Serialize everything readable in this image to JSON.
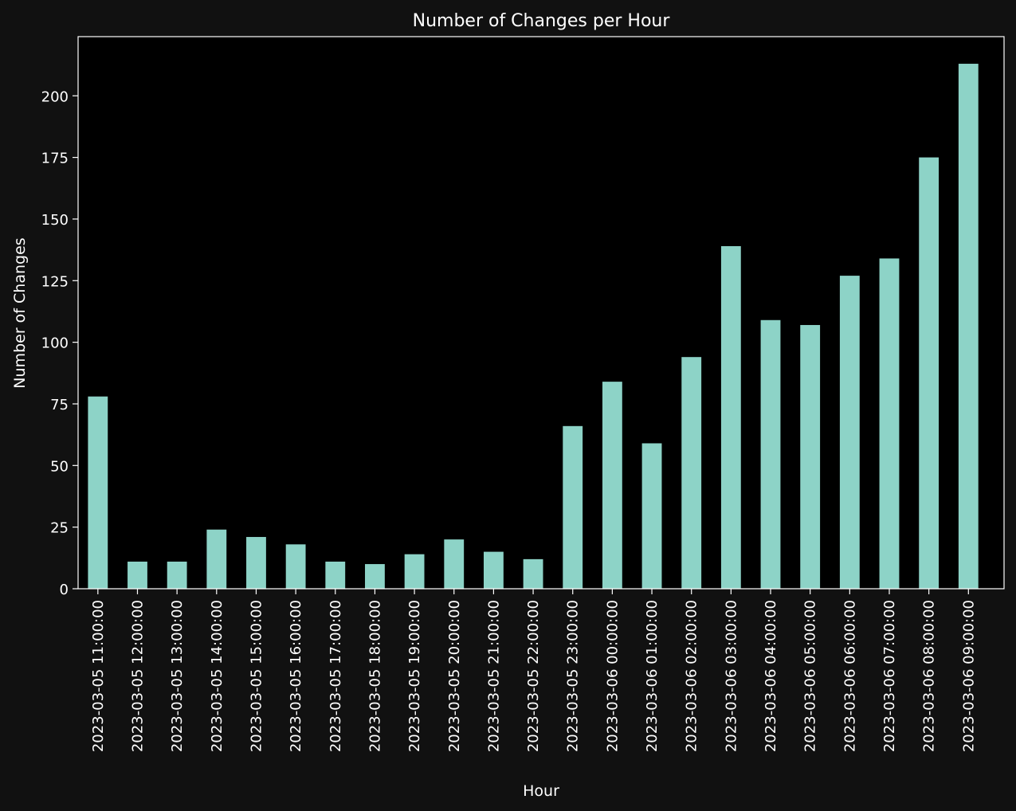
{
  "chart_data": {
    "type": "bar",
    "title": "Number of Changes per Hour",
    "xlabel": "Hour",
    "ylabel": "Number of Changes",
    "categories": [
      "2023-03-05 11:00:00",
      "2023-03-05 12:00:00",
      "2023-03-05 13:00:00",
      "2023-03-05 14:00:00",
      "2023-03-05 15:00:00",
      "2023-03-05 16:00:00",
      "2023-03-05 17:00:00",
      "2023-03-05 18:00:00",
      "2023-03-05 19:00:00",
      "2023-03-05 20:00:00",
      "2023-03-05 21:00:00",
      "2023-03-05 22:00:00",
      "2023-03-05 23:00:00",
      "2023-03-06 00:00:00",
      "2023-03-06 01:00:00",
      "2023-03-06 02:00:00",
      "2023-03-06 03:00:00",
      "2023-03-06 04:00:00",
      "2023-03-06 05:00:00",
      "2023-03-06 06:00:00",
      "2023-03-06 07:00:00",
      "2023-03-06 08:00:00",
      "2023-03-06 09:00:00"
    ],
    "values": [
      78,
      11,
      11,
      24,
      21,
      18,
      11,
      10,
      14,
      20,
      15,
      12,
      66,
      84,
      59,
      94,
      139,
      109,
      107,
      127,
      134,
      175,
      213
    ],
    "ylim": [
      0,
      224
    ],
    "yticks": [
      0,
      25,
      50,
      75,
      100,
      125,
      150,
      175,
      200
    ],
    "grid": false,
    "legend": "none",
    "colors": {
      "bar": "#8dd3c7",
      "figure_bg": "#111111",
      "plot_bg": "#000000",
      "text": "#ffffff",
      "frame": "#ffffff"
    }
  }
}
